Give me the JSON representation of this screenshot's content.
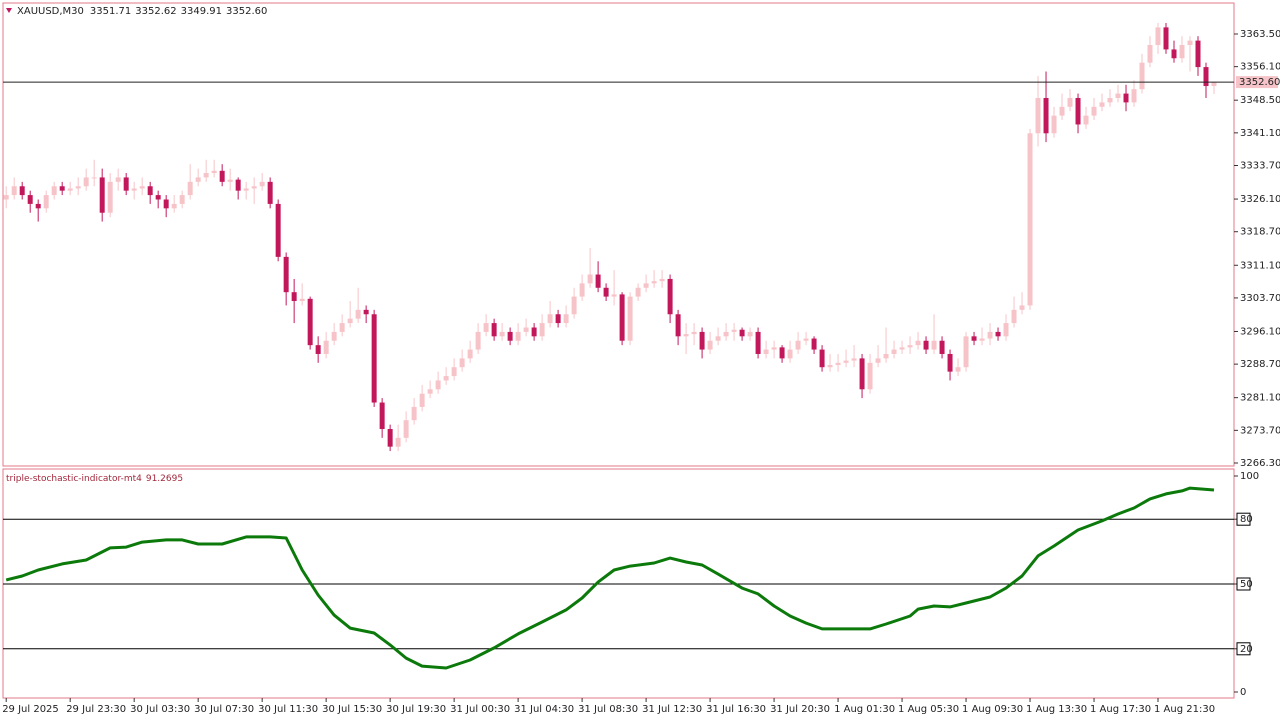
{
  "chart_data": [
    {
      "type": "candlestick",
      "symbol": "XAUUSD,M30",
      "header_values": [
        {
          "value": 3351.71,
          "label": "3351.71"
        },
        {
          "value": 3352.62,
          "label": "3352.62"
        },
        {
          "value": 3349.91,
          "label": "3349.91"
        },
        {
          "value": 3352.6,
          "label": "3352.60"
        }
      ],
      "last_price": {
        "value": 3352.6,
        "label": "3352.60"
      },
      "up_color": "#f6c4c8",
      "down_color": "#c2185b",
      "series": [
        {
          "open": [
            3326,
            3327,
            3329,
            3327,
            3325,
            3324,
            3327,
            3329,
            3328,
            3328.5,
            3329,
            3331,
            3331,
            3323,
            3330,
            3331,
            3328,
            3328.5,
            3329,
            3327,
            3326,
            3324,
            3325,
            3327,
            3330,
            3331,
            3332,
            3332.5,
            3330,
            3330.5,
            3328,
            3328.5,
            3329,
            3330,
            3325,
            3313,
            3305,
            3303,
            3303.5,
            3293,
            3291,
            3294,
            3296,
            3298,
            3299,
            3301,
            3300,
            3280,
            3274,
            3270,
            3272,
            3276,
            3279,
            3282,
            3283,
            3285,
            3286,
            3288,
            3290,
            3292,
            3296,
            3298,
            3295,
            3296,
            3294,
            3296,
            3297,
            3295,
            3298,
            3300,
            3298,
            3300,
            3304,
            3307,
            3309,
            3306,
            3304,
            3304.5,
            3294,
            3304,
            3306,
            3307,
            3307.5,
            3308,
            3300,
            3295,
            3295.5,
            3296,
            3292,
            3294,
            3295,
            3296,
            3296.5,
            3295,
            3296,
            3291,
            3292,
            3292.5,
            3290,
            3292,
            3294,
            3294.5,
            3292,
            3288,
            3288.5,
            3289,
            3289.5,
            3290,
            3283,
            3289,
            3290,
            3291,
            3292,
            3292.5,
            3293,
            3294,
            3292,
            3294,
            3291,
            3287,
            3288,
            3295,
            3294,
            3294.5,
            3296,
            3295,
            3298,
            3301,
            3302,
            3341,
            3349,
            3341,
            3345,
            3347,
            3349,
            3343,
            3345,
            3347,
            3348,
            3349,
            3350,
            3348,
            3351,
            3357,
            3361,
            3365,
            3360,
            3358,
            3361,
            3362,
            3356,
            3351.71
          ],
          "high": [
            3329,
            3331,
            3330,
            3328,
            3326,
            3328,
            3330,
            3330,
            3330,
            3331,
            3333,
            3335,
            3333,
            3332,
            3333,
            3332,
            3330,
            3331,
            3330,
            3328,
            3327,
            3327,
            3328,
            3334,
            3333,
            3335,
            3335,
            3334,
            3333,
            3331,
            3330,
            3331,
            3332,
            3331,
            3326,
            3314,
            3308,
            3307,
            3304,
            3295,
            3296,
            3298,
            3300,
            3303,
            3306,
            3302,
            3301,
            3281,
            3275,
            3275,
            3278,
            3281,
            3284,
            3285,
            3287,
            3288,
            3290,
            3292,
            3294,
            3298,
            3300,
            3299,
            3298,
            3297,
            3298,
            3299,
            3298,
            3300,
            3303,
            3301,
            3302,
            3306,
            3309,
            3315,
            3312,
            3307,
            3310,
            3305,
            3305,
            3307,
            3309,
            3310,
            3310,
            3309,
            3301,
            3298,
            3298,
            3297,
            3296,
            3297,
            3298,
            3298,
            3297,
            3297,
            3297,
            3294,
            3294,
            3293,
            3294,
            3296,
            3296,
            3295,
            3293,
            3291,
            3291,
            3292,
            3293,
            3291,
            3291,
            3293,
            3297,
            3294,
            3294,
            3295,
            3296,
            3295,
            3300,
            3295,
            3292,
            3290,
            3296,
            3296,
            3297,
            3298,
            3297,
            3300,
            3304,
            3305,
            3342,
            3354,
            3355,
            3347,
            3350,
            3351,
            3350,
            3347,
            3349,
            3350,
            3351,
            3352,
            3352,
            3353,
            3359,
            3363,
            3366,
            3366,
            3362,
            3363,
            3363,
            3363,
            3357,
            3352.62
          ],
          "low": [
            3324,
            3326,
            3326,
            3323,
            3321,
            3323,
            3326,
            3327,
            3327,
            3327,
            3328,
            3329,
            3321,
            3322,
            3328,
            3327,
            3326,
            3327,
            3325,
            3324,
            3322,
            3323,
            3324,
            3326,
            3329,
            3330,
            3331,
            3329,
            3328,
            3326,
            3326,
            3325,
            3328,
            3324,
            3312,
            3302,
            3298,
            3302,
            3292,
            3289,
            3290,
            3293,
            3295,
            3297,
            3298,
            3298,
            3279,
            3272,
            3269,
            3269,
            3271,
            3275,
            3278,
            3281,
            3282,
            3284,
            3285,
            3287,
            3289,
            3291,
            3295,
            3294,
            3294,
            3293,
            3293,
            3295,
            3294,
            3294,
            3297,
            3297,
            3297,
            3299,
            3303,
            3306,
            3305,
            3303,
            3302,
            3293,
            3293,
            3303,
            3305,
            3306,
            3306,
            3298,
            3293,
            3291,
            3293,
            3290,
            3291,
            3293,
            3294,
            3294,
            3294,
            3294,
            3290,
            3290,
            3290,
            3289,
            3289,
            3291,
            3293,
            3291,
            3287,
            3287,
            3287,
            3288,
            3288,
            3281,
            3282,
            3288,
            3289,
            3290,
            3291,
            3291,
            3292,
            3291,
            3291,
            3290,
            3285,
            3286,
            3287,
            3293,
            3293,
            3293,
            3294,
            3294,
            3297,
            3300,
            3301,
            3338,
            3339,
            3340,
            3344,
            3346,
            3341,
            3342,
            3344,
            3346,
            3347,
            3348,
            3346,
            3347,
            3350,
            3356,
            3359,
            3359,
            3357,
            3357,
            3355,
            3354,
            3349,
            3349.91
          ],
          "close": [
            3327,
            3329,
            3327,
            3325,
            3324,
            3327,
            3329,
            3328,
            3328.5,
            3329,
            3331,
            3331,
            3323,
            3330,
            3331,
            3328,
            3328.5,
            3329,
            3327,
            3326,
            3324,
            3325,
            3327,
            3330,
            3331,
            3332,
            3332.5,
            3330,
            3330.5,
            3328,
            3328.5,
            3329,
            3330,
            3325,
            3313,
            3305,
            3303,
            3303.5,
            3293,
            3291,
            3294,
            3296,
            3298,
            3299,
            3301,
            3300,
            3280,
            3274,
            3270,
            3272,
            3276,
            3279,
            3282,
            3283,
            3285,
            3286,
            3288,
            3290,
            3292,
            3296,
            3298,
            3295,
            3296,
            3294,
            3296,
            3297,
            3295,
            3298,
            3300,
            3298,
            3300,
            3304,
            3307,
            3309,
            3306,
            3304,
            3304.5,
            3294,
            3304,
            3306,
            3307,
            3307.5,
            3308,
            3300,
            3295,
            3295.5,
            3296,
            3292,
            3294,
            3295,
            3296,
            3296.5,
            3295,
            3296,
            3291,
            3292,
            3292.5,
            3290,
            3292,
            3294,
            3294.5,
            3292,
            3288,
            3288.5,
            3289,
            3289.5,
            3290,
            3283,
            3289,
            3290,
            3291,
            3292,
            3292.5,
            3293,
            3294,
            3292,
            3294,
            3291,
            3287,
            3288,
            3295,
            3294,
            3294.5,
            3296,
            3295,
            3298,
            3301,
            3302,
            3341,
            3349,
            3341,
            3345,
            3347,
            3349,
            3343,
            3345,
            3347,
            3348,
            3349,
            3350,
            3348,
            3351,
            3357,
            3361,
            3365,
            3360,
            3358,
            3361,
            3362,
            3356,
            3351.71,
            3352.6
          ]
        }
      ],
      "xlim": [
        -0.4,
        153.5
      ],
      "ylim": [
        3265.62,
        3370.52
      ],
      "yticks": [
        {
          "value": 3363.5,
          "label": "3363.50"
        },
        {
          "value": 3356.1,
          "label": "3356.10"
        },
        {
          "value": 3348.5,
          "label": "3348.50"
        },
        {
          "value": 3341.1,
          "label": "3341.10"
        },
        {
          "value": 3333.7,
          "label": "3333.70"
        },
        {
          "value": 3326.1,
          "label": "3326.10"
        },
        {
          "value": 3318.7,
          "label": "3318.70"
        },
        {
          "value": 3311.1,
          "label": "3311.10"
        },
        {
          "value": 3303.7,
          "label": "3303.70"
        },
        {
          "value": 3296.1,
          "label": "3296.10"
        },
        {
          "value": 3288.7,
          "label": "3288.70"
        },
        {
          "value": 3281.1,
          "label": "3281.10"
        },
        {
          "value": 3273.7,
          "label": "3273.70"
        },
        {
          "value": 3266.3,
          "label": "3266.30"
        }
      ],
      "xticks": [
        {
          "value": 0,
          "label": "29 Jul 2025"
        },
        {
          "value": 8,
          "label": "29 Jul 23:30"
        },
        {
          "value": 16,
          "label": "30 Jul 03:30"
        },
        {
          "value": 24,
          "label": "30 Jul 07:30"
        },
        {
          "value": 32,
          "label": "30 Jul 11:30"
        },
        {
          "value": 40,
          "label": "30 Jul 15:30"
        },
        {
          "value": 48,
          "label": "30 Jul 19:30"
        },
        {
          "value": 56,
          "label": "31 Jul 00:30"
        },
        {
          "value": 64,
          "label": "31 Jul 04:30"
        },
        {
          "value": 72,
          "label": "31 Jul 08:30"
        },
        {
          "value": 80,
          "label": "31 Jul 12:30"
        },
        {
          "value": 88,
          "label": "31 Jul 16:30"
        },
        {
          "value": 96,
          "label": "31 Jul 20:30"
        },
        {
          "value": 104,
          "label": "1 Aug 01:30"
        },
        {
          "value": 112,
          "label": "1 Aug 05:30"
        },
        {
          "value": 120,
          "label": "1 Aug 09:30"
        },
        {
          "value": 128,
          "label": "1 Aug 13:30"
        },
        {
          "value": 136,
          "label": "1 Aug 17:30"
        },
        {
          "value": 144,
          "label": "1 Aug 21:30"
        }
      ]
    },
    {
      "type": "line",
      "title": "triple-stochastic-indicator-mt4",
      "last_value": 91.2695,
      "x": [
        0,
        2,
        4,
        7,
        10,
        13,
        15,
        17,
        20,
        22,
        24,
        27,
        30,
        33,
        35,
        37,
        39,
        41,
        43,
        46,
        48,
        50,
        52,
        55,
        58,
        61,
        64,
        67,
        70,
        72,
        74,
        76,
        78,
        81,
        83,
        85,
        87,
        89,
        92,
        94,
        96,
        98,
        100,
        102,
        105,
        108,
        110,
        113,
        114,
        116,
        118,
        120,
        123,
        125,
        127,
        129,
        131,
        134,
        137,
        139,
        141,
        143,
        145,
        147,
        148,
        151
      ],
      "series": [
        {
          "color": "#0b7a0b",
          "values": [
            51.9,
            53.7,
            56.5,
            59.3,
            61.1,
            66.7,
            67.1,
            69.4,
            70.4,
            70.4,
            68.5,
            68.5,
            71.8,
            71.8,
            71.3,
            56.5,
            44.9,
            35.6,
            29.6,
            27.3,
            21.8,
            15.7,
            12.0,
            11.1,
            14.8,
            20.4,
            26.9,
            32.4,
            38.0,
            43.5,
            50.9,
            56.5,
            58.3,
            59.7,
            62.0,
            60.2,
            58.8,
            54.6,
            48.1,
            45.4,
            39.8,
            35.2,
            31.9,
            29.2,
            29.2,
            29.2,
            31.5,
            35.2,
            38.4,
            39.8,
            39.4,
            41.2,
            44.0,
            48.1,
            53.7,
            63.0,
            67.6,
            75.0,
            79.2,
            82.4,
            85.2,
            89.4,
            91.7,
            93.1,
            94.4,
            93.5
          ]
        }
      ],
      "levels": [
        80,
        50,
        20
      ],
      "xlim": [
        -0.4,
        153.5
      ],
      "ylim": [
        -2.78,
        103.24
      ],
      "yticks": [
        100,
        80,
        50,
        20,
        0
      ]
    }
  ]
}
